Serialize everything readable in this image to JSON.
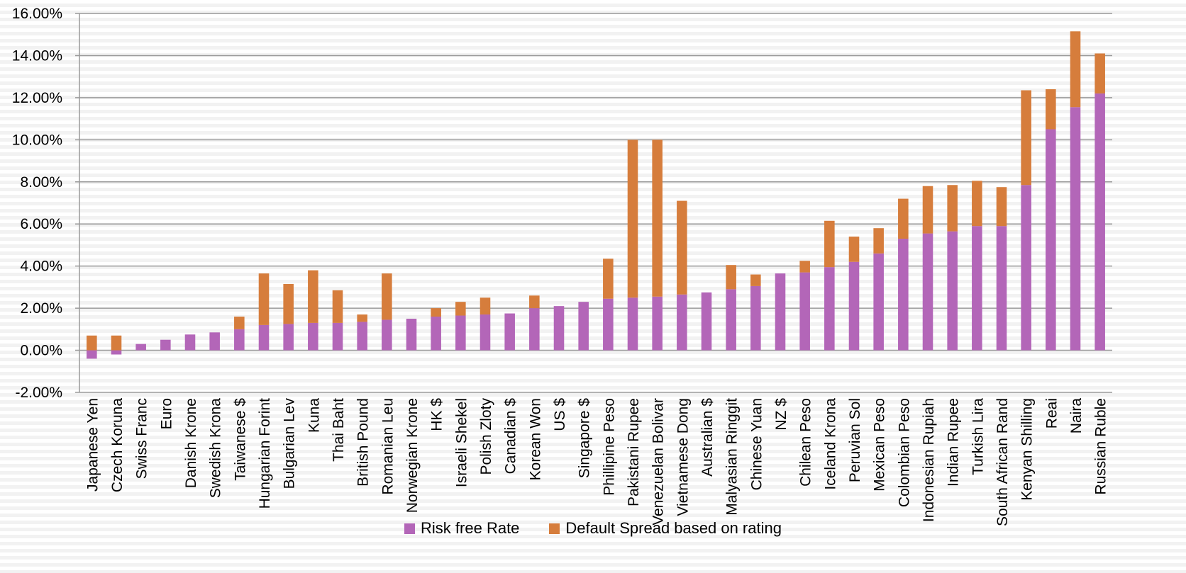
{
  "colors": {
    "risk_free": "#b366b8",
    "default_spread": "#d67d3c",
    "grid": "#9a9a9a",
    "text": "#000000"
  },
  "legend": {
    "risk_free_label": "Risk free Rate",
    "default_spread_label": "Default Spread based on rating"
  },
  "chart_data": {
    "type": "bar",
    "stacked": true,
    "grid": true,
    "legend_position": "bottom",
    "ylim": [
      -0.02,
      0.16
    ],
    "yticks": [
      -0.02,
      0.0,
      0.02,
      0.04,
      0.06,
      0.08,
      0.1,
      0.12,
      0.14,
      0.16
    ],
    "ytick_labels": [
      "-2.00%",
      "0.00%",
      "2.00%",
      "4.00%",
      "6.00%",
      "8.00%",
      "10.00%",
      "12.00%",
      "14.00%",
      "16.00%"
    ],
    "categories": [
      "Japanese Yen",
      "Czech Koruna",
      "Swiss Franc",
      "Euro",
      "Danish Krone",
      "Swedish Krona",
      "Taiwanese $",
      "Hungarian Forint",
      "Bulgarian Lev",
      "Kuna",
      "Thai Baht",
      "British Pound",
      "Romanian Leu",
      "Norwegian Krone",
      "HK $",
      "Israeli Shekel",
      "Polish Zloty",
      "Canadian $",
      "Korean Won",
      "US $",
      "Singapore $",
      "Phillipine Peso",
      "Pakistani Rupee",
      "Venezuelan Bolivar",
      "Vietnamese Dong",
      "Australian $",
      "Malyasian Ringgit",
      "Chinese Yuan",
      "NZ $",
      "Chilean Peso",
      "Iceland Krona",
      "Peruvian Sol",
      "Mexican Peso",
      "Colombian Peso",
      "Indonesian Rupiah",
      "Indian Rupee",
      "Turkish Lira",
      "South African Rand",
      "Kenyan Shilling",
      "Reai",
      "Naira",
      "Russian Ruble"
    ],
    "series": [
      {
        "name": "Risk free Rate",
        "values": [
          -0.004,
          -0.002,
          0.003,
          0.005,
          0.0075,
          0.0085,
          0.01,
          0.012,
          0.0125,
          0.013,
          0.013,
          0.0135,
          0.0145,
          0.015,
          0.016,
          0.0165,
          0.017,
          0.0175,
          0.02,
          0.021,
          0.023,
          0.0245,
          0.025,
          0.0255,
          0.0265,
          0.0275,
          0.029,
          0.0305,
          0.0365,
          0.037,
          0.0395,
          0.042,
          0.046,
          0.053,
          0.0555,
          0.0565,
          0.059,
          0.059,
          0.0785,
          0.105,
          0.1155,
          0.122
        ]
      },
      {
        "name": "Default Spread based on rating",
        "values": [
          0.007,
          0.007,
          0.0,
          0.0,
          0.0,
          0.0,
          0.006,
          0.0245,
          0.019,
          0.025,
          0.0155,
          0.0035,
          0.022,
          0.0,
          0.004,
          0.0065,
          0.008,
          0.0,
          0.006,
          0.0,
          0.0,
          0.019,
          0.075,
          0.0745,
          0.0445,
          0.0,
          0.0115,
          0.0055,
          0.0,
          0.0055,
          0.022,
          0.012,
          0.012,
          0.019,
          0.0225,
          0.022,
          0.0215,
          0.0185,
          0.045,
          0.019,
          0.036,
          0.019
        ]
      }
    ]
  }
}
